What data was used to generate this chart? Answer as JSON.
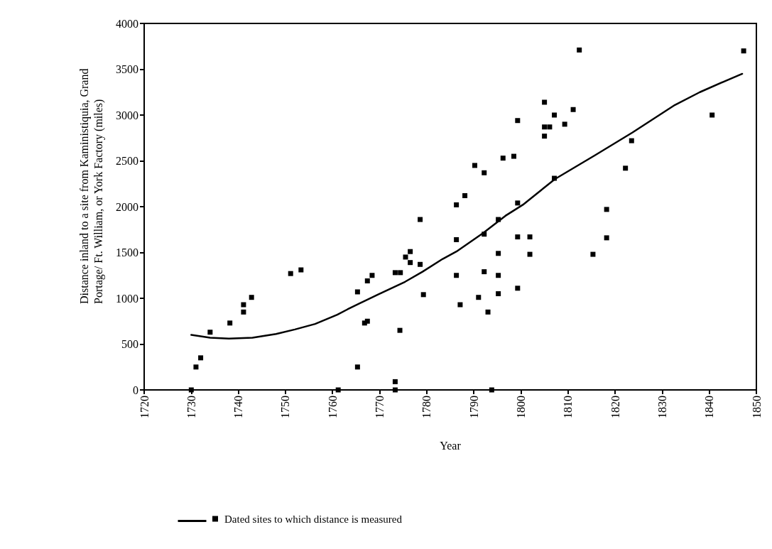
{
  "chart_data": {
    "type": "scatter",
    "xlabel": "Year",
    "ylabel": "Distance inland to a site from Kaministiquia, Grand Portage/ Ft. William, or York Factory (miles)",
    "xlim": [
      1720,
      1850
    ],
    "xticks": [
      1720,
      1730,
      1740,
      1750,
      1760,
      1770,
      1780,
      1790,
      1800,
      1810,
      1820,
      1830,
      1840,
      1850
    ],
    "ylim": [
      0,
      4000
    ],
    "yticks": [
      0,
      500,
      1000,
      1500,
      2000,
      2500,
      3000,
      3500,
      4000
    ],
    "grid": false,
    "legend": "bottom",
    "marker": "square",
    "series": [
      {
        "name": "Dated sites to which distance is measured",
        "color": "#000000",
        "x": [
          1730,
          1731,
          1732,
          1734,
          1738.2,
          1741.1,
          1741.1,
          1742.8,
          1751.1,
          1753.3,
          1761.2,
          1765.3,
          1765.3,
          1766.8,
          1767.4,
          1767.4,
          1768.4,
          1773.3,
          1774.4,
          1773.3,
          1773.3,
          1774.3,
          1775.5,
          1776.5,
          1776.5,
          1778.6,
          1778.6,
          1779.3,
          1786.3,
          1786.3,
          1786.3,
          1787.1,
          1788.1,
          1790.2,
          1791,
          1792.2,
          1792.2,
          1792.2,
          1793,
          1793.8,
          1795.2,
          1795.2,
          1795.2,
          1795.2,
          1796.2,
          1798.5,
          1799.3,
          1799.3,
          1799.3,
          1799.3,
          1801.9,
          1801.9,
          1805,
          1805,
          1806.1,
          1805,
          1807.1,
          1807.1,
          1809.3,
          1811.1,
          1812.4,
          1815.3,
          1818.2,
          1818.2,
          1822.2,
          1823.5,
          1840.6,
          1847.3
        ],
        "values": [
          0,
          250,
          350,
          630,
          730,
          850,
          930,
          1010,
          1270,
          1310,
          0,
          1070,
          250,
          730,
          750,
          1190,
          1250,
          1280,
          1280,
          90,
          0,
          650,
          1450,
          1510,
          1390,
          1370,
          1860,
          1040,
          2020,
          1640,
          1250,
          930,
          2120,
          2450,
          1010,
          2370,
          1700,
          1290,
          850,
          0,
          1860,
          1490,
          1250,
          1050,
          2530,
          2550,
          2940,
          2040,
          1670,
          1110,
          1670,
          1480,
          3140,
          2870,
          2870,
          2770,
          3000,
          2310,
          2900,
          3060,
          3710,
          1480,
          1970,
          1660,
          2420,
          2720,
          3000,
          3700
        ]
      },
      {
        "type": "line",
        "color": "#000000",
        "marker": "none",
        "line_style": "solid",
        "x": [
          1730,
          1734,
          1738,
          1743,
          1748,
          1752,
          1756.3,
          1761,
          1763.2,
          1769.6,
          1775.4,
          1779.1,
          1783.4,
          1786.3,
          1791.9,
          1796.7,
          1800.4,
          1807.2,
          1815.7,
          1823.7,
          1832.7,
          1838,
          1843.3,
          1847
        ],
        "values": [
          600,
          570,
          560,
          570,
          610,
          660,
          720,
          820,
          880,
          1040,
          1180,
          1290,
          1430,
          1510,
          1710,
          1900,
          2020,
          2300,
          2560,
          2810,
          3110,
          3250,
          3370,
          3450
        ]
      }
    ]
  }
}
